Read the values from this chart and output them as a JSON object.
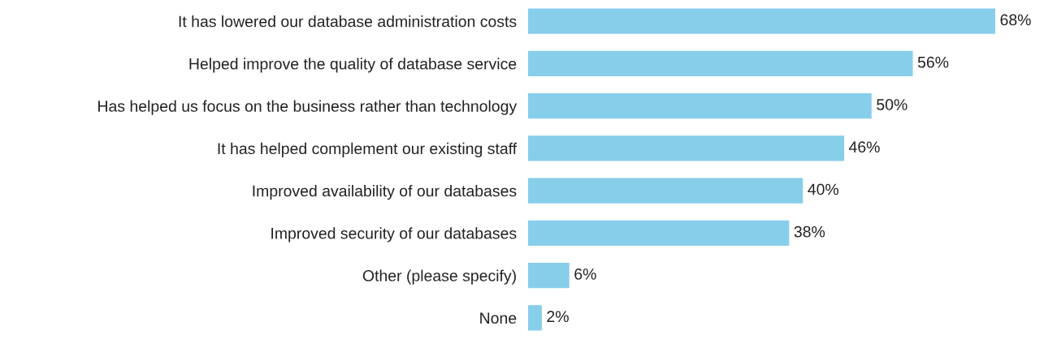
{
  "chart_data": {
    "type": "bar",
    "orientation": "horizontal",
    "categories": [
      "It has lowered our database administration costs",
      "Helped improve the quality of database service",
      "Has helped us focus on the business rather than technology",
      "It has helped complement our existing staff",
      "Improved availability of our databases",
      "Improved security of our databases",
      "Other (please specify)",
      "None"
    ],
    "values": [
      68,
      56,
      50,
      46,
      40,
      38,
      6,
      2
    ],
    "value_labels": [
      "68%",
      "56%",
      "50%",
      "46%",
      "40%",
      "38%",
      "6%",
      "2%"
    ],
    "color": "#87ceeb",
    "grid": false,
    "legend": false,
    "tick_labels": "y"
  }
}
